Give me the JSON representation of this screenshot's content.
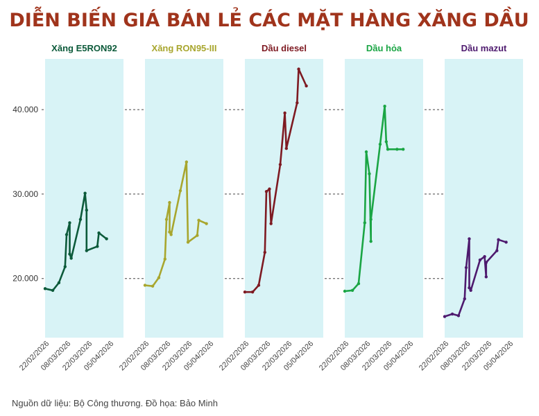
{
  "chart_data": {
    "type": "line",
    "title": "DIỄN BIẾN GIÁ BÁN LẺ CÁC MẶT HÀNG XĂNG DẦU",
    "source": "Nguồn dữ liệu: Bộ Công thương. Đồ họa: Bảo Minh",
    "colors": {
      "title": "#a0341c",
      "panel_background": "#d8f3f6",
      "grid": "#444444"
    },
    "x_ticks": [
      "22/02/2026",
      "08/03/2026",
      "22/03/2026",
      "05/04/2026"
    ],
    "x_range": [
      "2026-02-21",
      "2026-04-13"
    ],
    "y_ticks": [
      "20.000",
      "30.000",
      "40.000"
    ],
    "y_tick_values": [
      20000,
      30000,
      40000
    ],
    "ylim": [
      13000,
      46000
    ],
    "grid": "horizontal-dashed",
    "panels": [
      {
        "name": "Xăng E5RON92",
        "color": "#0c5a3a",
        "points": [
          [
            "2026-02-21",
            18800
          ],
          [
            "2026-02-26",
            18600
          ],
          [
            "2026-03-02",
            19500
          ],
          [
            "2026-03-06",
            21400
          ],
          [
            "2026-03-07",
            25200
          ],
          [
            "2026-03-09",
            26600
          ],
          [
            "2026-03-09",
            22900
          ],
          [
            "2026-03-10",
            22400
          ],
          [
            "2026-03-16",
            27000
          ],
          [
            "2026-03-19",
            30100
          ],
          [
            "2026-03-20",
            28100
          ],
          [
            "2026-03-20",
            23300
          ],
          [
            "2026-03-27",
            23800
          ],
          [
            "2026-03-28",
            25400
          ],
          [
            "2026-04-02",
            24700
          ]
        ]
      },
      {
        "name": "Xăng RON95-III",
        "color": "#a8a62e",
        "points": [
          [
            "2026-02-21",
            19200
          ],
          [
            "2026-02-26",
            19100
          ],
          [
            "2026-03-02",
            20100
          ],
          [
            "2026-03-06",
            22300
          ],
          [
            "2026-03-07",
            27000
          ],
          [
            "2026-03-09",
            29000
          ],
          [
            "2026-03-09",
            25500
          ],
          [
            "2026-03-10",
            25200
          ],
          [
            "2026-03-16",
            30400
          ],
          [
            "2026-03-20",
            33800
          ],
          [
            "2026-03-21",
            24300
          ],
          [
            "2026-03-27",
            25100
          ],
          [
            "2026-03-28",
            26900
          ],
          [
            "2026-04-02",
            26500
          ]
        ]
      },
      {
        "name": "Dầu diesel",
        "color": "#7e1a22",
        "points": [
          [
            "2026-02-21",
            18400
          ],
          [
            "2026-02-26",
            18400
          ],
          [
            "2026-03-02",
            19200
          ],
          [
            "2026-03-06",
            23100
          ],
          [
            "2026-03-07",
            30300
          ],
          [
            "2026-03-09",
            30600
          ],
          [
            "2026-03-10",
            26500
          ],
          [
            "2026-03-16",
            33500
          ],
          [
            "2026-03-19",
            39600
          ],
          [
            "2026-03-20",
            35400
          ],
          [
            "2026-03-27",
            40800
          ],
          [
            "2026-03-28",
            44800
          ],
          [
            "2026-04-02",
            42800
          ]
        ]
      },
      {
        "name": "Dầu hỏa",
        "color": "#1aa544",
        "points": [
          [
            "2026-02-21",
            18500
          ],
          [
            "2026-02-26",
            18600
          ],
          [
            "2026-03-02",
            19400
          ],
          [
            "2026-03-06",
            26600
          ],
          [
            "2026-03-07",
            35000
          ],
          [
            "2026-03-09",
            32400
          ],
          [
            "2026-03-10",
            24400
          ],
          [
            "2026-03-10",
            27000
          ],
          [
            "2026-03-16",
            35900
          ],
          [
            "2026-03-19",
            40400
          ],
          [
            "2026-03-20",
            36200
          ],
          [
            "2026-03-21",
            35300
          ],
          [
            "2026-03-27",
            35300
          ],
          [
            "2026-03-31",
            35300
          ]
        ]
      },
      {
        "name": "Dầu mazut",
        "color": "#4e1a6e",
        "points": [
          [
            "2026-02-21",
            15500
          ],
          [
            "2026-02-26",
            15800
          ],
          [
            "2026-03-02",
            15600
          ],
          [
            "2026-03-06",
            17600
          ],
          [
            "2026-03-07",
            21300
          ],
          [
            "2026-03-09",
            24700
          ],
          [
            "2026-03-09",
            18900
          ],
          [
            "2026-03-10",
            18600
          ],
          [
            "2026-03-16",
            22200
          ],
          [
            "2026-03-19",
            22600
          ],
          [
            "2026-03-20",
            20200
          ],
          [
            "2026-03-20",
            21900
          ],
          [
            "2026-03-27",
            23300
          ],
          [
            "2026-03-28",
            24600
          ],
          [
            "2026-04-02",
            24300
          ]
        ]
      }
    ]
  }
}
